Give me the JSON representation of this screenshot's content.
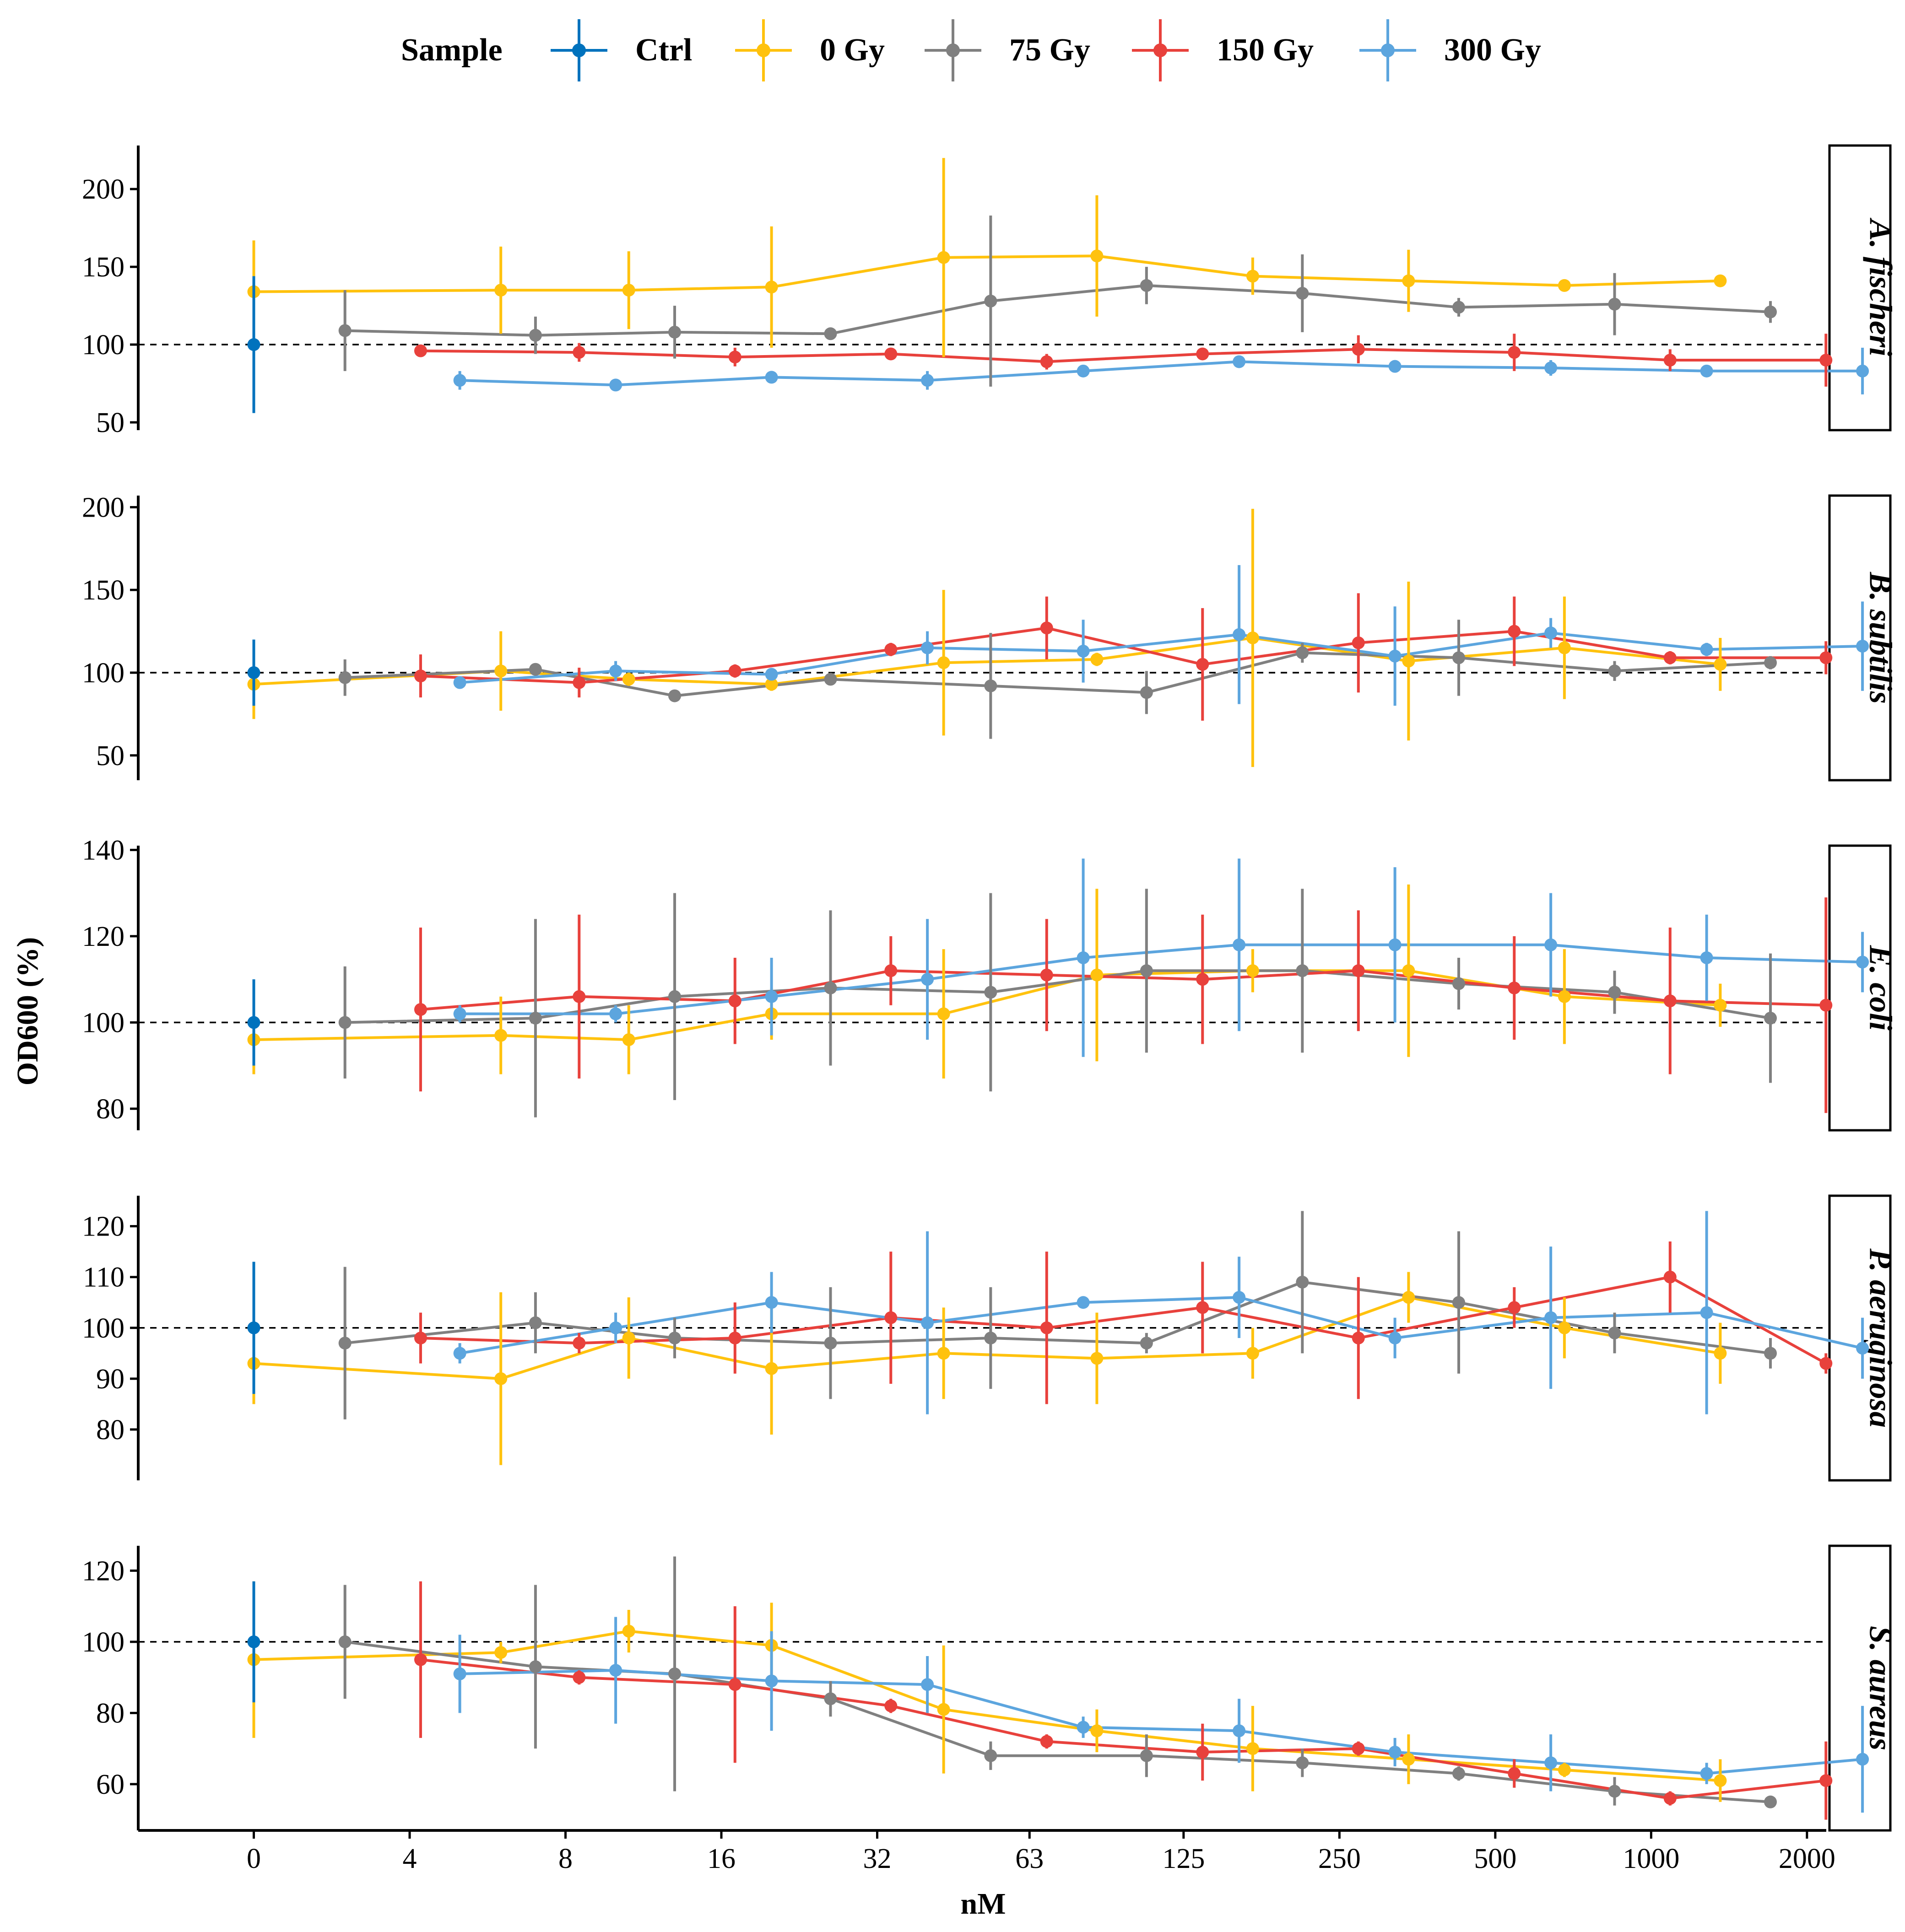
{
  "chart_data": {
    "type": "line",
    "title": "",
    "xlabel": "nM",
    "ylabel": "OD600 (%)",
    "x_ticks": [
      "0",
      "4",
      "8",
      "16",
      "32",
      "63",
      "125",
      "250",
      "500",
      "1000",
      "2000"
    ],
    "reference_line": 100,
    "legend": {
      "title": "Sample",
      "position": "top",
      "entries": [
        {
          "name": "Ctrl",
          "color": "#0072BD"
        },
        {
          "name": "0 Gy",
          "color": "#FFC20E"
        },
        {
          "name": "75 Gy",
          "color": "#808080"
        },
        {
          "name": "150 Gy",
          "color": "#E8413C"
        },
        {
          "name": "300 Gy",
          "color": "#5CA5DE"
        }
      ]
    },
    "panels": [
      {
        "title": "A. fischeri",
        "ylim": [
          45,
          228
        ],
        "yticks": [
          50,
          100,
          150,
          200
        ],
        "ctrl": {
          "x": 0,
          "y": 100,
          "err": 44
        },
        "series": [
          {
            "name": "0 Gy",
            "x": [
              2.0,
              6.0,
              10.6,
              20.0,
              43.0,
              85.0,
              170.0,
              340.0,
              680.0,
              1360.0
            ],
            "y": [
              134,
              135,
              135,
              137,
              156,
              157,
              144,
              141,
              138,
              141
            ],
            "err": [
              33,
              28,
              25,
              39,
              64,
              39,
              12,
              20,
              3,
              3
            ]
          },
          {
            "name": "75 Gy",
            "x": [
              3.0,
              7.0,
              13.0,
              26.0,
              53.0,
              106.0,
              212.0,
              425.0,
              850.0,
              1700.0
            ],
            "y": [
              109,
              106,
              108,
              107,
              128,
              138,
              133,
              124,
              126,
              121
            ],
            "err": [
              26,
              12,
              17,
              4,
              55,
              12,
              25,
              6,
              20,
              7
            ]
          },
          {
            "name": "150 Gy",
            "x": [
              4.2,
              8.5,
              17.0,
              34.0,
              68.0,
              136.0,
              272.0,
              544.0,
              1088.0,
              2176.0
            ],
            "y": [
              96,
              95,
              92,
              94,
              89,
              94,
              97,
              95,
              90,
              90
            ],
            "err": [
              3,
              6,
              6,
              3,
              5,
              3,
              9,
              12,
              7,
              17
            ]
          },
          {
            "name": "300 Gy",
            "x": [
              5.0,
              10.0,
              20.0,
              40.0,
              80.0,
              160.0,
              320.0,
              640.0,
              1280.0,
              2560.0
            ],
            "y": [
              77,
              74,
              79,
              77,
              83,
              89,
              86,
              85,
              83,
              83
            ],
            "err": [
              6,
              3,
              3,
              6,
              3,
              4,
              3,
              5,
              3,
              15
            ]
          }
        ]
      },
      {
        "title": "B. subtilis",
        "ylim": [
          35,
          207
        ],
        "yticks": [
          50,
          100,
          150,
          200
        ],
        "ctrl": {
          "x": 0,
          "y": 100,
          "err": 20
        },
        "series": [
          {
            "name": "0 Gy",
            "x": [
              2.0,
              6.0,
              10.6,
              20.0,
              43.0,
              85.0,
              170.0,
              340.0,
              680.0,
              1360.0
            ],
            "y": [
              93,
              101,
              96,
              93,
              106,
              108,
              121,
              107,
              115,
              105
            ],
            "err": [
              21,
              24,
              4,
              4,
              44,
              4,
              78,
              48,
              31,
              16
            ]
          },
          {
            "name": "75 Gy",
            "x": [
              3.0,
              7.0,
              13.0,
              26.0,
              53.0,
              106.0,
              212.0,
              425.0,
              850.0,
              1700.0
            ],
            "y": [
              97,
              102,
              86,
              96,
              92,
              88,
              112,
              109,
              101,
              106
            ],
            "err": [
              11,
              3,
              3,
              3,
              32,
              13,
              6,
              23,
              6,
              4
            ]
          },
          {
            "name": "150 Gy",
            "x": [
              4.2,
              8.5,
              17.0,
              34.0,
              68.0,
              136.0,
              272.0,
              544.0,
              1088.0,
              2176.0
            ],
            "y": [
              98,
              94,
              101,
              114,
              127,
              105,
              118,
              125,
              109,
              109
            ],
            "err": [
              13,
              9,
              4,
              4,
              19,
              34,
              30,
              21,
              4,
              10
            ]
          },
          {
            "name": "300 Gy",
            "x": [
              5.0,
              10.0,
              20.0,
              40.0,
              80.0,
              160.0,
              320.0,
              640.0,
              1280.0,
              2560.0
            ],
            "y": [
              94,
              101,
              99,
              115,
              113,
              123,
              110,
              124,
              114,
              116
            ],
            "err": [
              3,
              6,
              3,
              10,
              19,
              42,
              30,
              9,
              4,
              27
            ]
          }
        ]
      },
      {
        "title": "E. coli",
        "ylim": [
          75,
          141
        ],
        "yticks": [
          80,
          100,
          120,
          140
        ],
        "ctrl": {
          "x": 0,
          "y": 100,
          "err": 10
        },
        "series": [
          {
            "name": "0 Gy",
            "x": [
              2.0,
              6.0,
              10.6,
              20.0,
              43.0,
              85.0,
              170.0,
              340.0,
              680.0,
              1360.0
            ],
            "y": [
              96,
              97,
              96,
              102,
              102,
              111,
              112,
              112,
              106,
              104
            ],
            "err": [
              8,
              9,
              8,
              6,
              15,
              20,
              5,
              20,
              11,
              5
            ]
          },
          {
            "name": "75 Gy",
            "x": [
              3.0,
              7.0,
              13.0,
              26.0,
              53.0,
              106.0,
              212.0,
              425.0,
              850.0,
              1700.0
            ],
            "y": [
              100,
              101,
              106,
              108,
              107,
              112,
              112,
              109,
              107,
              101
            ],
            "err": [
              13,
              23,
              24,
              18,
              23,
              19,
              19,
              6,
              5,
              15
            ]
          },
          {
            "name": "150 Gy",
            "x": [
              4.2,
              8.5,
              17.0,
              34.0,
              68.0,
              136.0,
              272.0,
              544.0,
              1088.0,
              2176.0
            ],
            "y": [
              103,
              106,
              105,
              112,
              111,
              110,
              112,
              108,
              105,
              104
            ],
            "err": [
              19,
              19,
              10,
              8,
              13,
              15,
              14,
              12,
              17,
              25
            ]
          },
          {
            "name": "300 Gy",
            "x": [
              5.0,
              10.0,
              20.0,
              40.0,
              80.0,
              160.0,
              320.0,
              640.0,
              1280.0,
              2560.0
            ],
            "y": [
              102,
              102,
              106,
              110,
              115,
              118,
              118,
              118,
              115,
              114
            ],
            "err": [
              2,
              2,
              9,
              14,
              23,
              20,
              18,
              12,
              10,
              7
            ]
          }
        ]
      },
      {
        "title": "P. aeruginosa",
        "ylim": [
          70,
          126
        ],
        "yticks": [
          80,
          90,
          100,
          110,
          120
        ],
        "ctrl": {
          "x": 0,
          "y": 100,
          "err": 13
        },
        "series": [
          {
            "name": "0 Gy",
            "x": [
              2.0,
              6.0,
              10.6,
              20.0,
              43.0,
              85.0,
              170.0,
              340.0,
              680.0,
              1360.0
            ],
            "y": [
              93,
              90,
              98,
              92,
              95,
              94,
              95,
              106,
              100,
              95
            ],
            "err": [
              8,
              17,
              8,
              13,
              9,
              9,
              5,
              5,
              6,
              6
            ]
          },
          {
            "name": "75 Gy",
            "x": [
              3.0,
              7.0,
              13.0,
              26.0,
              53.0,
              106.0,
              212.0,
              425.0,
              850.0,
              1700.0
            ],
            "y": [
              97,
              101,
              98,
              97,
              98,
              97,
              109,
              105,
              99,
              95
            ],
            "err": [
              15,
              6,
              4,
              11,
              10,
              2,
              14,
              14,
              4,
              3
            ]
          },
          {
            "name": "150 Gy",
            "x": [
              4.2,
              8.5,
              17.0,
              34.0,
              68.0,
              136.0,
              272.0,
              544.0,
              1088.0,
              2176.0
            ],
            "y": [
              98,
              97,
              98,
              102,
              100,
              104,
              98,
              104,
              110,
              93
            ],
            "err": [
              5,
              2,
              7,
              13,
              15,
              9,
              12,
              4,
              7,
              2
            ]
          },
          {
            "name": "300 Gy",
            "x": [
              5.0,
              10.0,
              20.0,
              40.0,
              80.0,
              160.0,
              320.0,
              640.0,
              1280.0,
              2560.0
            ],
            "y": [
              95,
              100,
              105,
              101,
              105,
              106,
              98,
              102,
              103,
              96
            ],
            "err": [
              2,
              3,
              6,
              18,
              1,
              8,
              4,
              14,
              20,
              6
            ]
          }
        ]
      },
      {
        "title": "S. aureus",
        "ylim": [
          47,
          127
        ],
        "yticks": [
          60,
          80,
          100,
          120
        ],
        "ctrl": {
          "x": 0,
          "y": 100,
          "err": 17
        },
        "series": [
          {
            "name": "0 Gy",
            "x": [
              2.0,
              6.0,
              10.6,
              20.0,
              43.0,
              85.0,
              170.0,
              340.0,
              680.0,
              1360.0
            ],
            "y": [
              95,
              97,
              103,
              99,
              81,
              75,
              70,
              67,
              64,
              61
            ],
            "err": [
              22,
              3,
              6,
              12,
              18,
              6,
              12,
              7,
              2,
              6
            ]
          },
          {
            "name": "75 Gy",
            "x": [
              3.0,
              7.0,
              13.0,
              26.0,
              53.0,
              106.0,
              212.0,
              425.0,
              850.0,
              1700.0
            ],
            "y": [
              100,
              93,
              91,
              84,
              68,
              68,
              66,
              63,
              58,
              55
            ],
            "err": [
              16,
              23,
              33,
              5,
              4,
              6,
              4,
              2,
              4,
              1
            ]
          },
          {
            "name": "150 Gy",
            "x": [
              4.2,
              8.5,
              17.0,
              34.0,
              68.0,
              136.0,
              272.0,
              544.0,
              1088.0,
              2176.0
            ],
            "y": [
              95,
              90,
              88,
              82,
              72,
              69,
              70,
              63,
              56,
              61
            ],
            "err": [
              22,
              2,
              22,
              2,
              2,
              8,
              2,
              4,
              2,
              11
            ]
          },
          {
            "name": "300 Gy",
            "x": [
              5.0,
              10.0,
              20.0,
              40.0,
              80.0,
              160.0,
              320.0,
              640.0,
              1280.0,
              2560.0
            ],
            "y": [
              91,
              92,
              89,
              88,
              76,
              75,
              69,
              66,
              63,
              67
            ],
            "err": [
              11,
              15,
              14,
              8,
              3,
              9,
              4,
              8,
              3,
              15
            ]
          }
        ]
      }
    ]
  }
}
